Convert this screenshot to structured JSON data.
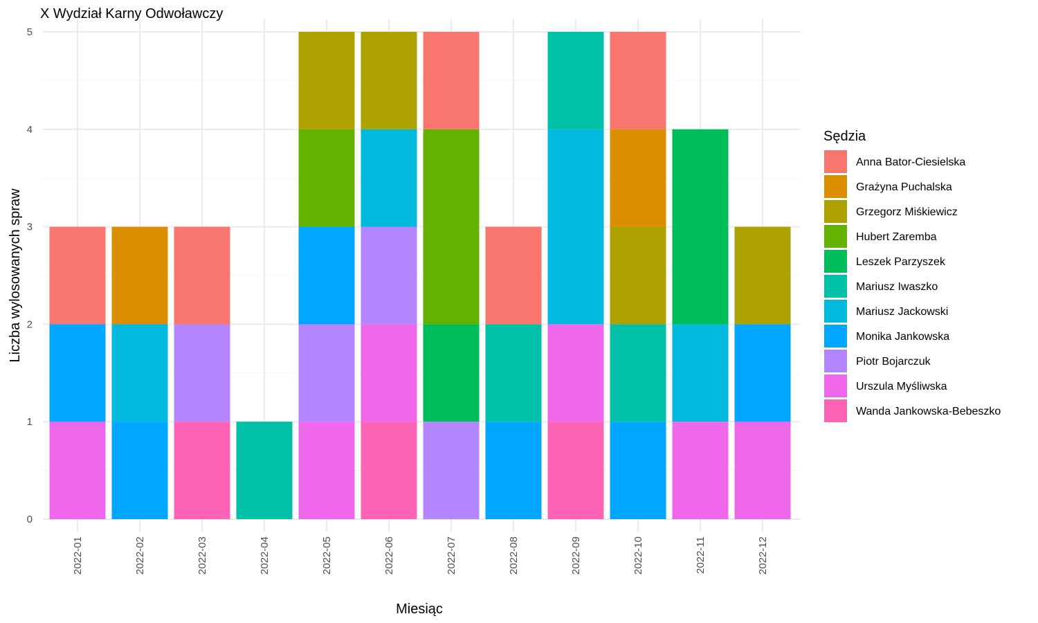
{
  "chart_data": {
    "type": "bar",
    "stacked": true,
    "title": "X Wydział Karny Odwoławczy",
    "xlabel": "Miesiąc",
    "ylabel": "Liczba wylosowanych spraw",
    "ylim": [
      0,
      5
    ],
    "yticks": [
      0,
      1,
      2,
      3,
      4,
      5
    ],
    "grid": true,
    "legend_position": "right",
    "legend_title": "Sędzia",
    "categories": [
      "2022-01",
      "2022-02",
      "2022-03",
      "2022-04",
      "2022-05",
      "2022-06",
      "2022-07",
      "2022-08",
      "2022-09",
      "2022-10",
      "2022-11",
      "2022-12"
    ],
    "series": [
      {
        "name": "Anna Bator-Ciesielska",
        "color": "#F8766D",
        "values": [
          1,
          0,
          1,
          0,
          0,
          0,
          1,
          1,
          0,
          1,
          0,
          0
        ]
      },
      {
        "name": "Grażyna Puchalska",
        "color": "#DB8E00",
        "values": [
          0,
          1,
          0,
          0,
          0,
          0,
          0,
          0,
          0,
          1,
          0,
          0
        ]
      },
      {
        "name": "Grzegorz Miśkiewicz",
        "color": "#AEA200",
        "values": [
          0,
          0,
          0,
          0,
          1,
          1,
          0,
          0,
          0,
          1,
          0,
          1
        ]
      },
      {
        "name": "Hubert Zaremba",
        "color": "#64B200",
        "values": [
          0,
          0,
          0,
          0,
          1,
          0,
          2,
          0,
          0,
          0,
          0,
          0
        ]
      },
      {
        "name": "Leszek Parzyszek",
        "color": "#00BD5C",
        "values": [
          0,
          0,
          0,
          0,
          0,
          0,
          1,
          0,
          0,
          0,
          2,
          0
        ]
      },
      {
        "name": "Mariusz Iwaszko",
        "color": "#00C1A7",
        "values": [
          0,
          0,
          0,
          1,
          0,
          0,
          0,
          1,
          1,
          1,
          0,
          0
        ]
      },
      {
        "name": "Mariusz Jackowski",
        "color": "#00BADE",
        "values": [
          0,
          1,
          0,
          0,
          0,
          1,
          0,
          0,
          2,
          0,
          1,
          0
        ]
      },
      {
        "name": "Monika Jankowska",
        "color": "#00A6FF",
        "values": [
          1,
          1,
          0,
          0,
          1,
          0,
          0,
          1,
          0,
          1,
          0,
          1
        ]
      },
      {
        "name": "Piotr Bojarczuk",
        "color": "#B385FF",
        "values": [
          0,
          0,
          1,
          0,
          1,
          1,
          1,
          0,
          0,
          0,
          0,
          0
        ]
      },
      {
        "name": "Urszula Myśliwska",
        "color": "#EF67EB",
        "values": [
          1,
          0,
          0,
          0,
          1,
          1,
          0,
          0,
          1,
          0,
          1,
          1
        ]
      },
      {
        "name": "Wanda Jankowska-Bebeszko",
        "color": "#FF63B6",
        "values": [
          0,
          0,
          1,
          0,
          0,
          1,
          0,
          0,
          1,
          0,
          0,
          0
        ]
      }
    ]
  }
}
